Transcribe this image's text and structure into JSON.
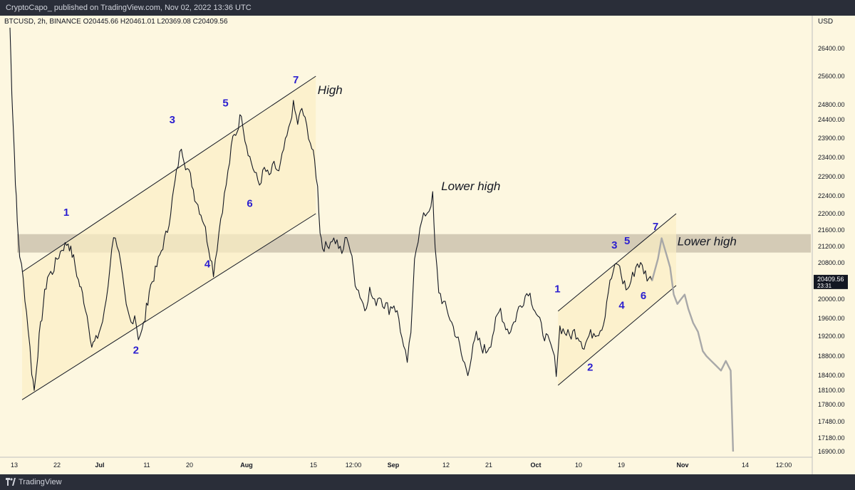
{
  "header": {
    "published": "CryptoCapo_ published on TradingView.com, Nov 02, 2022 13:36 UTC",
    "ticker": "BTCUSD, 2h, BINANCE  O20445.66  H20461.01  L20369.08  C20409.56"
  },
  "footer": {
    "brand": "TradingView"
  },
  "colors": {
    "background": "#fdf7e0",
    "candle": "#131722",
    "projection": "#a8a8a8",
    "zone": "#c5bca8",
    "channel_fill": "#fbeec4",
    "wave_label": "#2b1ecf"
  },
  "chart_data": {
    "type": "candlestick",
    "symbol": "BTCUSD",
    "interval": "2h",
    "exchange": "BINANCE",
    "ohlc": {
      "open": 20445.66,
      "high": 20461.01,
      "low": 20369.08,
      "close": 20409.56
    },
    "y_axis": {
      "unit": "USD",
      "ticks": [
        "26400.00",
        "25600.00",
        "24800.00",
        "24400.00",
        "23900.00",
        "23400.00",
        "22900.00",
        "22400.00",
        "22000.00",
        "21600.00",
        "21200.00",
        "20800.00",
        "20000.00",
        "19600.00",
        "19200.00",
        "18800.00",
        "18400.00",
        "18100.00",
        "17800.00",
        "17480.00",
        "17180.00",
        "16900.00"
      ],
      "last_price": "20409.56",
      "countdown": "23:31"
    },
    "x_axis": {
      "ticks": [
        "13",
        "22",
        "Jul",
        "11",
        "20",
        "Aug",
        "15",
        "12:00",
        "Sep",
        "12",
        "21",
        "Oct",
        "10",
        "19",
        "Nov",
        "14",
        "12:00"
      ]
    },
    "price_path": [
      [
        0,
        27000
      ],
      [
        0.3,
        25200
      ],
      [
        0.6,
        24000
      ],
      [
        0.9,
        22800
      ],
      [
        1.2,
        21800
      ],
      [
        1.6,
        21000
      ],
      [
        2.2,
        20400
      ],
      [
        3.0,
        19400
      ],
      [
        3.6,
        18500
      ],
      [
        4.0,
        18100
      ],
      [
        4.6,
        18900
      ],
      [
        5.5,
        19900
      ],
      [
        6.2,
        20500
      ],
      [
        7.0,
        20600
      ],
      [
        7.8,
        20900
      ],
      [
        8.6,
        21150
      ],
      [
        9.6,
        21300
      ],
      [
        10.5,
        20900
      ],
      [
        11.3,
        20400
      ],
      [
        12.2,
        20000
      ],
      [
        13.0,
        19500
      ],
      [
        13.5,
        19000
      ],
      [
        14.2,
        19100
      ],
      [
        15.0,
        19400
      ],
      [
        15.6,
        19700
      ],
      [
        16.2,
        20300
      ],
      [
        16.8,
        21200
      ],
      [
        17.4,
        21500
      ],
      [
        18.0,
        21000
      ],
      [
        18.6,
        20400
      ],
      [
        19.2,
        19800
      ],
      [
        20.0,
        19500
      ],
      [
        20.6,
        19700
      ],
      [
        21.2,
        19200
      ],
      [
        21.8,
        19300
      ],
      [
        22.3,
        19600
      ],
      [
        23.0,
        20200
      ],
      [
        24.0,
        20600
      ],
      [
        25.0,
        21100
      ],
      [
        26.0,
        21600
      ],
      [
        26.8,
        22300
      ],
      [
        27.5,
        23000
      ],
      [
        28.3,
        23700
      ],
      [
        29.0,
        23200
      ],
      [
        29.8,
        22900
      ],
      [
        30.5,
        22400
      ],
      [
        31.3,
        22100
      ],
      [
        32.0,
        21800
      ],
      [
        32.8,
        21200
      ],
      [
        33.6,
        20600
      ],
      [
        34.2,
        21200
      ],
      [
        34.8,
        21900
      ],
      [
        35.4,
        22400
      ],
      [
        36.0,
        23000
      ],
      [
        36.8,
        23900
      ],
      [
        37.5,
        24100
      ],
      [
        38.2,
        24600
      ],
      [
        38.8,
        23900
      ],
      [
        39.6,
        23400
      ],
      [
        40.4,
        23000
      ],
      [
        41.2,
        22700
      ],
      [
        42.0,
        23100
      ],
      [
        42.8,
        22900
      ],
      [
        43.6,
        23200
      ],
      [
        44.4,
        23000
      ],
      [
        45.2,
        23600
      ],
      [
        46.0,
        24100
      ],
      [
        46.8,
        24800
      ],
      [
        47.5,
        24300
      ],
      [
        48.2,
        24700
      ],
      [
        49.0,
        24200
      ],
      [
        49.6,
        23800
      ],
      [
        50.3,
        23300
      ],
      [
        50.8,
        22600
      ],
      [
        51.2,
        21600
      ],
      [
        51.6,
        21200
      ],
      [
        52.4,
        21200
      ],
      [
        53.2,
        21400
      ],
      [
        54.0,
        21300
      ],
      [
        54.8,
        21000
      ],
      [
        55.6,
        21500
      ],
      [
        56.2,
        21100
      ],
      [
        57.0,
        20400
      ],
      [
        57.8,
        20100
      ],
      [
        58.6,
        19800
      ],
      [
        59.4,
        20200
      ],
      [
        60.2,
        19900
      ],
      [
        61.0,
        20100
      ],
      [
        61.8,
        19900
      ],
      [
        62.6,
        19800
      ],
      [
        63.4,
        19900
      ],
      [
        64.2,
        19600
      ],
      [
        65.0,
        18900
      ],
      [
        65.6,
        18700
      ],
      [
        66.2,
        19200
      ],
      [
        66.8,
        21000
      ],
      [
        67.4,
        21400
      ],
      [
        68.0,
        21800
      ],
      [
        68.6,
        22000
      ],
      [
        69.2,
        22100
      ],
      [
        69.8,
        22400
      ],
      [
        70.2,
        21100
      ],
      [
        70.8,
        20200
      ],
      [
        71.6,
        19900
      ],
      [
        72.4,
        19700
      ],
      [
        73.2,
        19400
      ],
      [
        74.0,
        19100
      ],
      [
        74.8,
        18700
      ],
      [
        75.6,
        18500
      ],
      [
        76.2,
        18800
      ],
      [
        77.0,
        19200
      ],
      [
        77.8,
        19000
      ],
      [
        78.6,
        18900
      ],
      [
        79.4,
        19100
      ],
      [
        80.2,
        19500
      ],
      [
        81.0,
        19800
      ],
      [
        81.6,
        19500
      ],
      [
        82.4,
        19300
      ],
      [
        83.2,
        19500
      ],
      [
        84.0,
        19800
      ],
      [
        84.8,
        20000
      ],
      [
        85.6,
        20200
      ],
      [
        86.4,
        19900
      ],
      [
        87.2,
        19600
      ],
      [
        88.0,
        19300
      ],
      [
        88.8,
        19100
      ],
      [
        89.6,
        18900
      ],
      [
        90.2,
        18500
      ],
      [
        90.8,
        19400
      ],
      [
        91.6,
        19300
      ],
      [
        92.4,
        19200
      ],
      [
        93.2,
        19300
      ],
      [
        94.0,
        19200
      ],
      [
        94.8,
        19000
      ],
      [
        95.6,
        19200
      ],
      [
        96.4,
        19300
      ],
      [
        97.2,
        19300
      ],
      [
        98.0,
        19500
      ],
      [
        98.8,
        20200
      ],
      [
        99.6,
        20600
      ],
      [
        100.4,
        20800
      ],
      [
        101.2,
        20400
      ],
      [
        102.0,
        20200
      ],
      [
        102.8,
        20500
      ],
      [
        103.6,
        20800
      ],
      [
        104.4,
        20700
      ],
      [
        105.2,
        20500
      ],
      [
        106.0,
        20400
      ]
    ],
    "projection_path": [
      [
        106.0,
        20400
      ],
      [
        107.0,
        20900
      ],
      [
        107.6,
        21400
      ],
      [
        108.4,
        21000
      ],
      [
        109.0,
        20700
      ],
      [
        109.6,
        20100
      ],
      [
        110.2,
        19900
      ],
      [
        110.8,
        20000
      ],
      [
        111.4,
        20100
      ],
      [
        112.0,
        19800
      ],
      [
        112.8,
        19500
      ],
      [
        113.6,
        19300
      ],
      [
        114.4,
        18900
      ],
      [
        115.0,
        18800
      ],
      [
        115.8,
        18700
      ],
      [
        116.6,
        18600
      ],
      [
        117.4,
        18500
      ],
      [
        118.2,
        18700
      ],
      [
        119.0,
        18500
      ],
      [
        119.4,
        16900
      ]
    ],
    "channels": [
      {
        "name": "channel-1",
        "upper": [
          [
            2.0,
            20600
          ],
          [
            50.5,
            25600
          ]
        ],
        "lower": [
          [
            2.0,
            17900
          ],
          [
            50.5,
            22000
          ]
        ],
        "fill_to_index": 50.5
      },
      {
        "name": "channel-2",
        "upper": [
          [
            90.5,
            19750
          ],
          [
            110.0,
            22000
          ]
        ],
        "lower": [
          [
            90.5,
            18200
          ],
          [
            110.0,
            20300
          ]
        ],
        "fill_to_index": 110.0
      }
    ],
    "zone": {
      "from": 21050,
      "to": 21500
    },
    "wave_labels": [
      {
        "text": "1",
        "x": 9.3,
        "y": 21950
      },
      {
        "text": "2",
        "x": 20.8,
        "y": 18850
      },
      {
        "text": "3",
        "x": 26.8,
        "y": 24300
      },
      {
        "text": "4",
        "x": 32.6,
        "y": 20700
      },
      {
        "text": "5",
        "x": 35.6,
        "y": 24750
      },
      {
        "text": "6",
        "x": 39.6,
        "y": 22150
      },
      {
        "text": "7",
        "x": 47.2,
        "y": 25400
      },
      {
        "text": "1",
        "x": 90.4,
        "y": 20150
      },
      {
        "text": "2",
        "x": 95.8,
        "y": 18500
      },
      {
        "text": "3",
        "x": 99.8,
        "y": 21150
      },
      {
        "text": "4",
        "x": 101.0,
        "y": 19800
      },
      {
        "text": "5",
        "x": 101.9,
        "y": 21250
      },
      {
        "text": "6",
        "x": 104.6,
        "y": 20000
      },
      {
        "text": "7",
        "x": 106.6,
        "y": 21600
      }
    ],
    "annotations": [
      {
        "text": "High",
        "x": 50.8,
        "y": 25100
      },
      {
        "text": "Lower high",
        "x": 71.2,
        "y": 22550
      },
      {
        "text": "Lower high",
        "x": 110.2,
        "y": 21230
      }
    ]
  }
}
